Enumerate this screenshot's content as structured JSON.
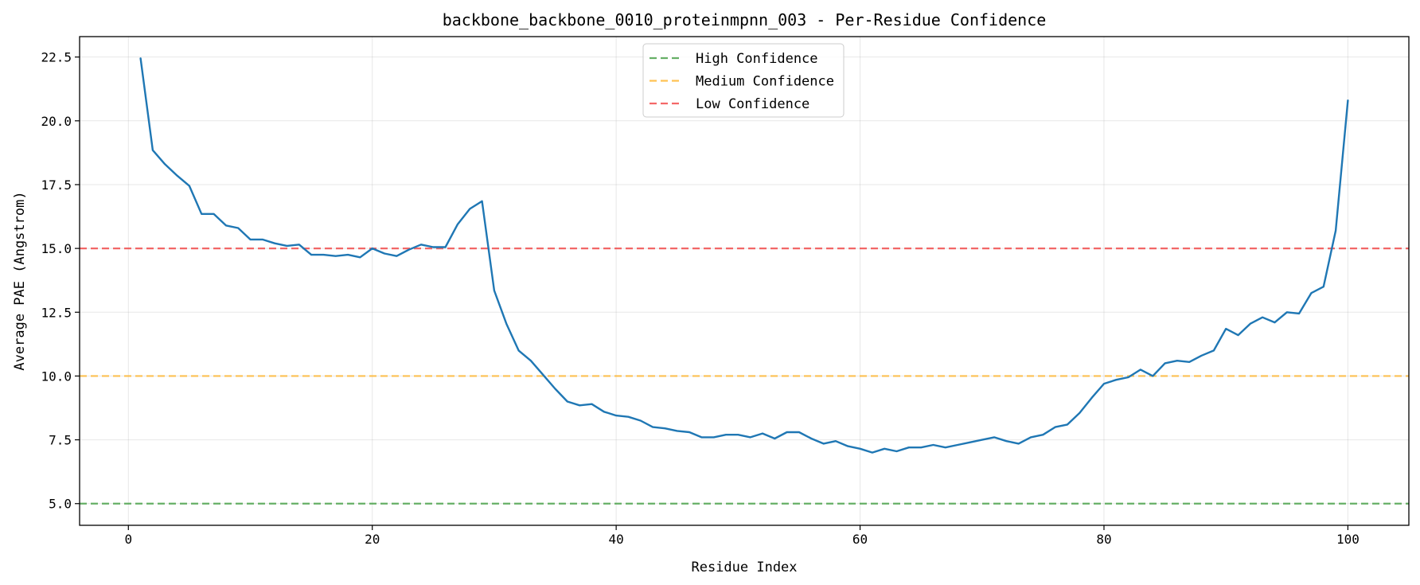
{
  "chart_data": {
    "type": "line",
    "title": "backbone_backbone_0010_proteinmpnn_003 - Per-Residue Confidence",
    "xlabel": "Residue Index",
    "ylabel": "Average PAE (Angstrom)",
    "xlim": [
      -4,
      105
    ],
    "ylim": [
      4.15,
      23.3
    ],
    "xticks": [
      0,
      20,
      40,
      60,
      80,
      100
    ],
    "yticks": [
      5.0,
      7.5,
      10.0,
      12.5,
      15.0,
      17.5,
      20.0,
      22.5
    ],
    "xtick_labels": [
      "0",
      "20",
      "40",
      "60",
      "80",
      "100"
    ],
    "ytick_labels": [
      "5.0",
      "7.5",
      "10.0",
      "12.5",
      "15.0",
      "17.5",
      "20.0",
      "22.5"
    ],
    "grid": true,
    "legend_position": "top-center",
    "series": [
      {
        "color": "#1f77b4",
        "x": [
          1,
          2,
          3,
          4,
          5,
          6,
          7,
          8,
          9,
          10,
          11,
          12,
          13,
          14,
          15,
          16,
          17,
          18,
          19,
          20,
          21,
          22,
          23,
          24,
          25,
          26,
          27,
          28,
          29,
          30,
          31,
          32,
          33,
          34,
          35,
          36,
          37,
          38,
          39,
          40,
          41,
          42,
          43,
          44,
          45,
          46,
          47,
          48,
          49,
          50,
          51,
          52,
          53,
          54,
          55,
          56,
          57,
          58,
          59,
          60,
          61,
          62,
          63,
          64,
          65,
          66,
          67,
          68,
          69,
          70,
          71,
          72,
          73,
          74,
          75,
          76,
          77,
          78,
          79,
          80,
          81,
          82,
          83,
          84,
          85,
          86,
          87,
          88,
          89,
          90,
          91,
          92,
          93,
          94,
          95,
          96,
          97,
          98,
          99,
          100
        ],
        "y": [
          22.45,
          18.85,
          18.3,
          17.85,
          17.45,
          16.35,
          16.35,
          15.9,
          15.8,
          15.35,
          15.35,
          15.2,
          15.1,
          15.15,
          14.75,
          14.75,
          14.7,
          14.75,
          14.65,
          15.0,
          14.8,
          14.7,
          14.95,
          15.15,
          15.05,
          15.05,
          15.95,
          16.55,
          16.85,
          13.35,
          12.05,
          11.0,
          10.6,
          10.05,
          9.5,
          9.0,
          8.85,
          8.9,
          8.6,
          8.45,
          8.4,
          8.25,
          8.0,
          7.95,
          7.85,
          7.8,
          7.6,
          7.6,
          7.7,
          7.7,
          7.6,
          7.75,
          7.55,
          7.8,
          7.8,
          7.55,
          7.35,
          7.45,
          7.25,
          7.15,
          7.0,
          7.15,
          7.05,
          7.2,
          7.2,
          7.3,
          7.2,
          7.3,
          7.4,
          7.5,
          7.6,
          7.45,
          7.35,
          7.6,
          7.7,
          8.0,
          8.1,
          8.55,
          9.15,
          9.7,
          9.85,
          9.95,
          10.25,
          10.0,
          10.5,
          10.6,
          10.55,
          10.8,
          11.0,
          11.85,
          11.6,
          12.05,
          12.3,
          12.1,
          12.5,
          12.45,
          13.25,
          13.5,
          15.7,
          20.8
        ]
      }
    ],
    "reference_lines": [
      {
        "name": "High Confidence",
        "y": 5.0,
        "color": "#4ca24c"
      },
      {
        "name": "Medium Confidence",
        "y": 10.0,
        "color": "#ffb836"
      },
      {
        "name": "Low Confidence",
        "y": 15.0,
        "color": "#f24d4d"
      }
    ]
  }
}
